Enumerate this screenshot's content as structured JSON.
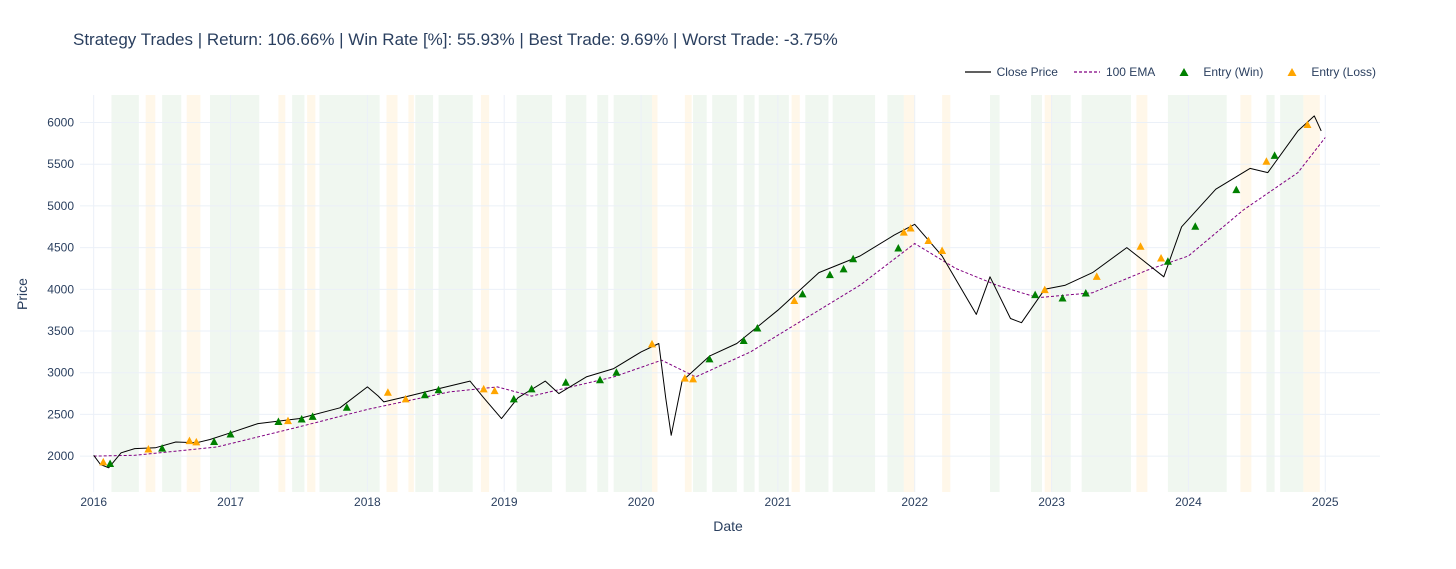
{
  "chart_data": {
    "type": "line",
    "title": "Strategy Trades | Return: 106.66% | Win Rate [%]: 55.93% | Best Trade: 9.69% | Worst Trade: -3.75%",
    "xlabel": "Date",
    "ylabel": "Price",
    "xlim": [
      2015.9,
      2025.4
    ],
    "ylim": [
      1570,
      6330
    ],
    "x_ticks": [
      2016,
      2017,
      2018,
      2019,
      2020,
      2021,
      2022,
      2023,
      2024,
      2025
    ],
    "x_tick_labels": [
      "2016",
      "2017",
      "2018",
      "2019",
      "2020",
      "2021",
      "2022",
      "2023",
      "2024",
      "2025"
    ],
    "y_ticks": [
      2000,
      2500,
      3000,
      3500,
      4000,
      4500,
      5000,
      5500,
      6000
    ],
    "y_tick_labels": [
      "2000",
      "2500",
      "3000",
      "3500",
      "4000",
      "4500",
      "5000",
      "5500",
      "6000"
    ],
    "grid": true,
    "legend_position": "top-right",
    "legend": [
      {
        "name": "Close Price",
        "kind": "line",
        "color": "#000000"
      },
      {
        "name": "100 EMA",
        "kind": "dash",
        "color": "#800080"
      },
      {
        "name": "Entry (Win)",
        "kind": "triangle",
        "color": "#008000"
      },
      {
        "name": "Entry (Loss)",
        "kind": "triangle",
        "color": "#FFA500"
      }
    ],
    "series": [
      {
        "name": "Close Price",
        "color": "#000000",
        "x": [
          2016.0,
          2016.05,
          2016.11,
          2016.2,
          2016.3,
          2016.45,
          2016.6,
          2016.75,
          2016.85,
          2017.0,
          2017.2,
          2017.5,
          2017.8,
          2018.0,
          2018.08,
          2018.12,
          2018.3,
          2018.5,
          2018.75,
          2018.85,
          2018.98,
          2019.1,
          2019.3,
          2019.4,
          2019.6,
          2019.8,
          2020.0,
          2020.13,
          2020.18,
          2020.22,
          2020.3,
          2020.5,
          2020.7,
          2020.85,
          2021.0,
          2021.3,
          2021.6,
          2021.85,
          2022.0,
          2022.2,
          2022.45,
          2022.55,
          2022.7,
          2022.78,
          2022.95,
          2023.1,
          2023.3,
          2023.55,
          2023.82,
          2023.95,
          2024.2,
          2024.45,
          2024.58,
          2024.8,
          2024.92,
          2024.97
        ],
        "values": [
          2010,
          1900,
          1860,
          2040,
          2090,
          2100,
          2170,
          2160,
          2200,
          2280,
          2390,
          2450,
          2580,
          2830,
          2720,
          2650,
          2720,
          2800,
          2900,
          2700,
          2450,
          2700,
          2900,
          2750,
          2950,
          3050,
          3250,
          3350,
          2700,
          2250,
          2900,
          3200,
          3350,
          3550,
          3750,
          4200,
          4400,
          4650,
          4780,
          4400,
          3700,
          4150,
          3650,
          3600,
          4000,
          4050,
          4200,
          4500,
          4150,
          4750,
          5200,
          5450,
          5400,
          5900,
          6080,
          5900
        ]
      },
      {
        "name": "100 EMA",
        "color": "#800080",
        "x": [
          2016.0,
          2016.3,
          2016.9,
          2017.5,
          2018.0,
          2018.6,
          2018.95,
          2019.2,
          2019.8,
          2020.15,
          2020.4,
          2020.8,
          2021.2,
          2021.6,
          2022.0,
          2022.3,
          2022.6,
          2022.9,
          2023.3,
          2023.7,
          2024.0,
          2024.4,
          2024.8,
          2025.0
        ],
        "values": [
          2000,
          2010,
          2110,
          2350,
          2560,
          2770,
          2830,
          2720,
          2950,
          3150,
          2950,
          3250,
          3650,
          4050,
          4550,
          4250,
          4050,
          3900,
          3960,
          4230,
          4400,
          4950,
          5400,
          5820
        ]
      }
    ],
    "entries_win": [
      {
        "x": 2016.12,
        "y": 1905
      },
      {
        "x": 2016.5,
        "y": 2090
      },
      {
        "x": 2016.88,
        "y": 2170
      },
      {
        "x": 2017.0,
        "y": 2260
      },
      {
        "x": 2017.35,
        "y": 2410
      },
      {
        "x": 2017.52,
        "y": 2440
      },
      {
        "x": 2017.6,
        "y": 2470
      },
      {
        "x": 2017.85,
        "y": 2580
      },
      {
        "x": 2018.42,
        "y": 2730
      },
      {
        "x": 2018.52,
        "y": 2790
      },
      {
        "x": 2019.07,
        "y": 2680
      },
      {
        "x": 2019.2,
        "y": 2800
      },
      {
        "x": 2019.45,
        "y": 2880
      },
      {
        "x": 2019.7,
        "y": 2910
      },
      {
        "x": 2019.82,
        "y": 3000
      },
      {
        "x": 2020.5,
        "y": 3160
      },
      {
        "x": 2020.75,
        "y": 3380
      },
      {
        "x": 2020.85,
        "y": 3530
      },
      {
        "x": 2021.18,
        "y": 3940
      },
      {
        "x": 2021.38,
        "y": 4170
      },
      {
        "x": 2021.48,
        "y": 4240
      },
      {
        "x": 2021.55,
        "y": 4360
      },
      {
        "x": 2021.88,
        "y": 4490
      },
      {
        "x": 2022.88,
        "y": 3930
      },
      {
        "x": 2023.08,
        "y": 3890
      },
      {
        "x": 2023.25,
        "y": 3950
      },
      {
        "x": 2023.85,
        "y": 4330
      },
      {
        "x": 2024.05,
        "y": 4750
      },
      {
        "x": 2024.35,
        "y": 5190
      },
      {
        "x": 2024.63,
        "y": 5600
      }
    ],
    "entries_loss": [
      {
        "x": 2016.07,
        "y": 1925
      },
      {
        "x": 2016.4,
        "y": 2080
      },
      {
        "x": 2016.7,
        "y": 2180
      },
      {
        "x": 2016.75,
        "y": 2165
      },
      {
        "x": 2017.42,
        "y": 2420
      },
      {
        "x": 2018.15,
        "y": 2760
      },
      {
        "x": 2018.28,
        "y": 2680
      },
      {
        "x": 2018.85,
        "y": 2800
      },
      {
        "x": 2018.93,
        "y": 2780
      },
      {
        "x": 2020.08,
        "y": 3340
      },
      {
        "x": 2020.32,
        "y": 2930
      },
      {
        "x": 2020.38,
        "y": 2920
      },
      {
        "x": 2021.12,
        "y": 3860
      },
      {
        "x": 2021.92,
        "y": 4680
      },
      {
        "x": 2021.97,
        "y": 4730
      },
      {
        "x": 2022.1,
        "y": 4580
      },
      {
        "x": 2022.2,
        "y": 4460
      },
      {
        "x": 2022.95,
        "y": 3990
      },
      {
        "x": 2023.33,
        "y": 4150
      },
      {
        "x": 2023.65,
        "y": 4510
      },
      {
        "x": 2023.8,
        "y": 4370
      },
      {
        "x": 2024.57,
        "y": 5530
      },
      {
        "x": 2024.87,
        "y": 5970
      }
    ],
    "win_periods": [
      [
        2016.13,
        2016.33
      ],
      [
        2016.5,
        2016.64
      ],
      [
        2016.85,
        2017.21
      ],
      [
        2017.45,
        2017.54
      ],
      [
        2017.65,
        2018.09
      ],
      [
        2018.35,
        2018.48
      ],
      [
        2018.52,
        2018.77
      ],
      [
        2019.09,
        2019.35
      ],
      [
        2019.45,
        2019.6
      ],
      [
        2019.68,
        2019.76
      ],
      [
        2019.8,
        2020.08
      ],
      [
        2020.38,
        2020.48
      ],
      [
        2020.52,
        2020.7
      ],
      [
        2020.75,
        2020.83
      ],
      [
        2020.86,
        2021.08
      ],
      [
        2021.2,
        2021.37
      ],
      [
        2021.4,
        2021.71
      ],
      [
        2021.8,
        2021.92
      ],
      [
        2022.55,
        2022.62
      ],
      [
        2022.85,
        2022.93
      ],
      [
        2023.0,
        2023.14
      ],
      [
        2023.22,
        2023.58
      ],
      [
        2023.85,
        2024.28
      ],
      [
        2024.57,
        2024.63
      ],
      [
        2024.67,
        2024.84
      ]
    ],
    "loss_periods": [
      [
        2016.38,
        2016.45
      ],
      [
        2016.68,
        2016.78
      ],
      [
        2017.35,
        2017.4
      ],
      [
        2017.56,
        2017.62
      ],
      [
        2018.14,
        2018.22
      ],
      [
        2018.3,
        2018.34
      ],
      [
        2018.83,
        2018.89
      ],
      [
        2020.08,
        2020.12
      ],
      [
        2020.32,
        2020.37
      ],
      [
        2021.1,
        2021.16
      ],
      [
        2021.92,
        2022.0
      ],
      [
        2022.2,
        2022.26
      ],
      [
        2022.95,
        2023.0
      ],
      [
        2023.62,
        2023.7
      ],
      [
        2024.38,
        2024.46
      ],
      [
        2024.84,
        2024.96
      ]
    ]
  }
}
